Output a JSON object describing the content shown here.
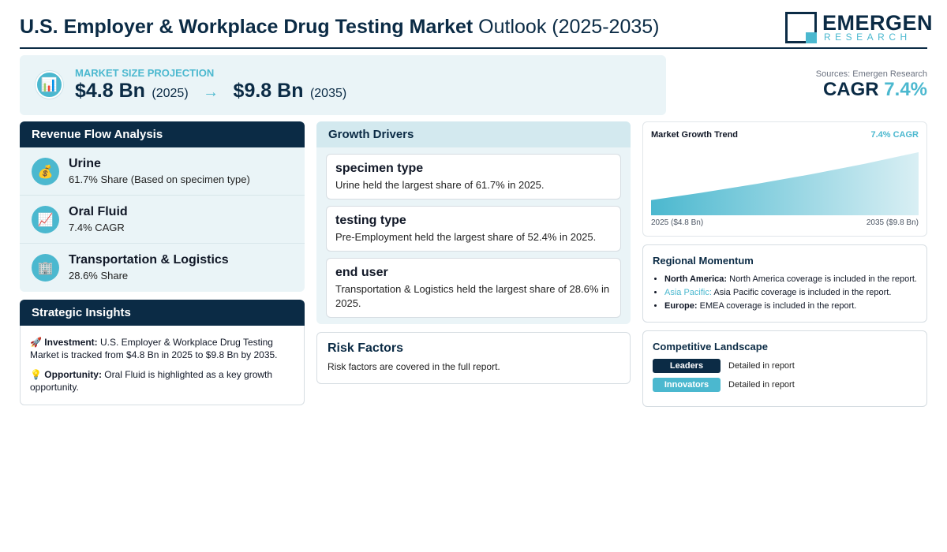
{
  "header": {
    "title_bold": "U.S. Employer & Workplace Drug Testing Market",
    "title_light": "Outlook (2025-2035)",
    "logo_name": "EMERGEN",
    "logo_sub": "RESEARCH"
  },
  "projection": {
    "label": "MARKET SIZE PROJECTION",
    "start_value": "$4.8 Bn",
    "start_year": "(2025)",
    "arrow": "→",
    "end_value": "$9.8 Bn",
    "end_year": "(2035)",
    "icon": "bar-chart-icon"
  },
  "summary": {
    "sources": "Sources: Emergen Research",
    "cagr_label": "CAGR",
    "cagr_value": "7.4%"
  },
  "revenue": {
    "title": "Revenue Flow Analysis",
    "items": [
      {
        "icon": "money-bag-icon",
        "glyph": "💰",
        "name": "Urine",
        "detail": "61.7% Share (Based on specimen type)"
      },
      {
        "icon": "trend-chart-icon",
        "glyph": "📈",
        "name": "Oral Fluid",
        "detail": "7.4% CAGR"
      },
      {
        "icon": "building-icon",
        "glyph": "🏢",
        "name": "Transportation & Logistics",
        "detail": "28.6% Share"
      }
    ]
  },
  "insights": {
    "title": "Strategic Insights",
    "investment_label": "Investment:",
    "investment_text": "U.S. Employer & Workplace Drug Testing Market is tracked from $4.8 Bn in 2025 to $9.8 Bn by 2035.",
    "opportunity_label": "Opportunity:",
    "opportunity_text": "Oral Fluid is highlighted as a key growth opportunity."
  },
  "drivers": {
    "title": "Growth Drivers",
    "items": [
      {
        "heading": "specimen type",
        "text": "Urine held the largest share of 61.7% in 2025."
      },
      {
        "heading": "testing type",
        "text": "Pre-Employment held the largest share of 52.4% in 2025."
      },
      {
        "heading": "end user",
        "text": "Transportation & Logistics held the largest share of 28.6% in 2025."
      }
    ]
  },
  "risk": {
    "title": "Risk Factors",
    "text": "Risk factors are covered in the full report."
  },
  "trend": {
    "title": "Market Growth Trend",
    "cagr": "7.4% CAGR",
    "start_label": "2025 ($4.8 Bn)",
    "end_label": "2035 ($9.8 Bn)"
  },
  "chart_data": {
    "type": "area",
    "x": [
      2025,
      2035
    ],
    "values": [
      4.8,
      9.8
    ],
    "title": "Market Growth Trend"
  },
  "regional": {
    "title": "Regional Momentum",
    "items": [
      {
        "region": "North America:",
        "text": "North America coverage is included in the report."
      },
      {
        "region": "Asia Pacific:",
        "text": "Asia Pacific coverage is included in the report."
      },
      {
        "region": "Europe:",
        "text": "EMEA coverage is included in the report."
      }
    ]
  },
  "competitive": {
    "title": "Competitive Landscape",
    "leaders_label": "Leaders",
    "leaders_text": "Detailed in report",
    "innovators_label": "Innovators",
    "innovators_text": "Detailed in report"
  },
  "colors": {
    "navy": "#0b2b45",
    "teal": "#4bb8cf",
    "panel": "#eaf4f7"
  }
}
